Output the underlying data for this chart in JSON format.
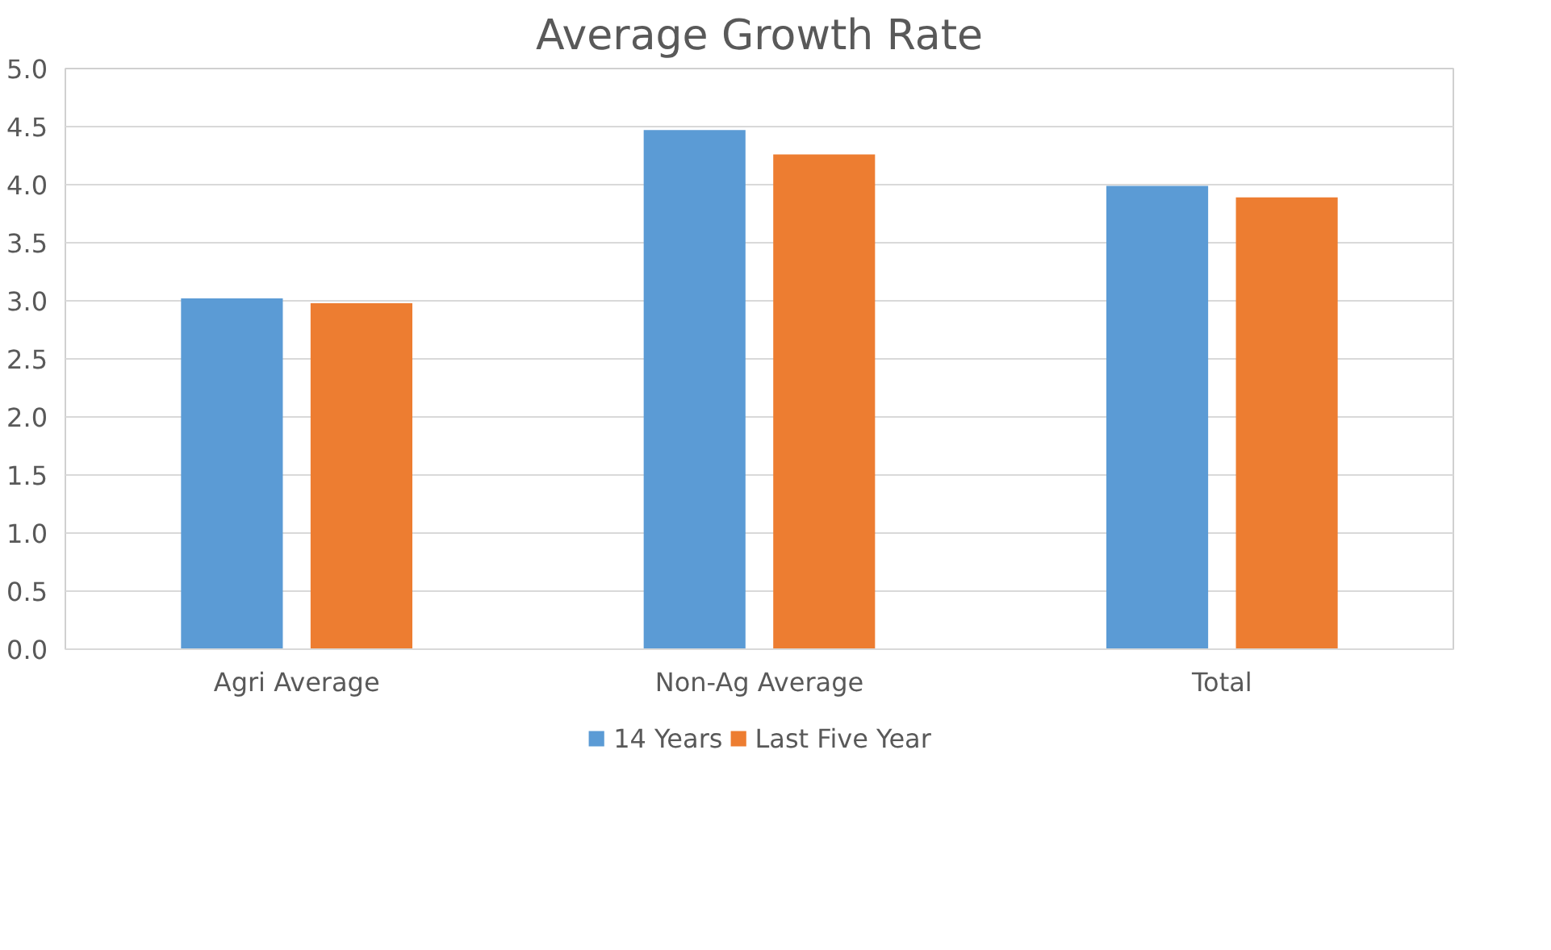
{
  "chart_data": {
    "type": "bar",
    "title": "Average Growth Rate",
    "categories": [
      "Agri Average",
      "Non-Ag Average",
      "Total"
    ],
    "series": [
      {
        "name": "14 Years",
        "color": "#5b9bd5",
        "values": [
          3.02,
          4.47,
          3.99
        ]
      },
      {
        "name": "Last Five Year",
        "color": "#ed7d31",
        "values": [
          2.98,
          4.26,
          3.89
        ]
      }
    ],
    "ylim": [
      0,
      5
    ],
    "yticks": [
      {
        "value": 0,
        "label": "0.0"
      },
      {
        "value": 0.5,
        "label": "0.5"
      },
      {
        "value": 1,
        "label": "1.0"
      },
      {
        "value": 1.5,
        "label": "1.5"
      },
      {
        "value": 2,
        "label": "2.0"
      },
      {
        "value": 2.5,
        "label": "2.5"
      },
      {
        "value": 3,
        "label": "3.0"
      },
      {
        "value": 3.5,
        "label": "3.5"
      },
      {
        "value": 4,
        "label": "4.0"
      },
      {
        "value": 4.5,
        "label": "4.5"
      },
      {
        "value": 5,
        "label": "5.0"
      }
    ],
    "grid": "y",
    "legend": "bottom"
  }
}
